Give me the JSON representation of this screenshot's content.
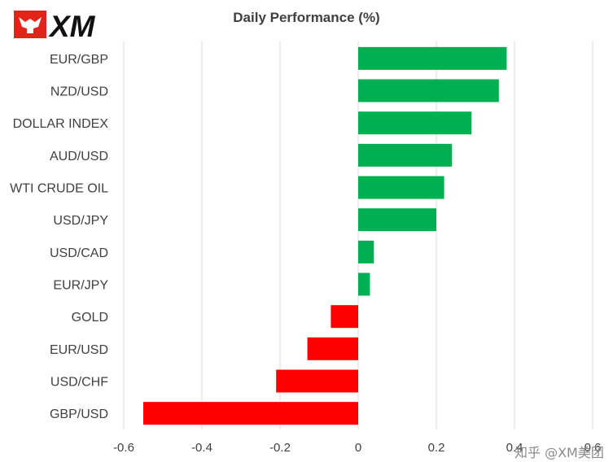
{
  "logo": {
    "text": "XM"
  },
  "watermark": "知乎 @XM美团",
  "chart_data": {
    "type": "bar",
    "orientation": "horizontal",
    "title": "Daily Performance (%)",
    "xlabel": "",
    "ylabel": "",
    "categories": [
      "EUR/GBP",
      "NZD/USD",
      "DOLLAR INDEX",
      "AUD/USD",
      "WTI CRUDE OIL",
      "USD/JPY",
      "USD/CAD",
      "EUR/JPY",
      "GOLD",
      "EUR/USD",
      "USD/CHF",
      "GBP/USD"
    ],
    "values": [
      0.38,
      0.36,
      0.29,
      0.24,
      0.22,
      0.2,
      0.04,
      0.03,
      -0.07,
      -0.13,
      -0.21,
      -0.55
    ],
    "xlim": [
      -0.6,
      0.6
    ],
    "xticks": [
      "-0.6",
      "-0.4",
      "-0.2",
      "0",
      "0.2",
      "0.4",
      "0.6"
    ],
    "tick_values": [
      -0.6,
      -0.4,
      -0.2,
      0,
      0.2,
      0.4,
      0.6
    ],
    "grid": "vertical",
    "legend": "none",
    "colors": {
      "positive": "#00b050",
      "negative": "#ff0000",
      "grid": "#d9d9d9",
      "text": "#404040"
    }
  }
}
